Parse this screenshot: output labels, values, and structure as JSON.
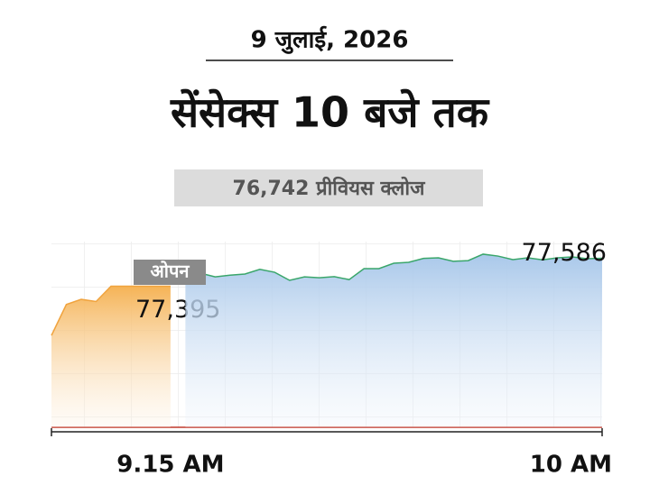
{
  "chart_data": {
    "type": "area",
    "date": "9 जुलाई, 2026",
    "title": "सेंसेक्स 10 बजे तक",
    "previous_close_label": "76,742 प्रीवियस क्लोज",
    "open_label": "ओपन",
    "categories": [
      null,
      null,
      null,
      null,
      null,
      null,
      null,
      null,
      "9.15 AM",
      null,
      null,
      null,
      null,
      null,
      null,
      null,
      null,
      null,
      null,
      null,
      null,
      null,
      null,
      null,
      null,
      null,
      null,
      null,
      null,
      null,
      null,
      null,
      null,
      null,
      null,
      null,
      null,
      "10 AM"
    ],
    "ylim": [
      76430,
      77700
    ],
    "series": [
      {
        "color": "#f0a33e",
        "values": [
          77058,
          77270,
          77305,
          77290,
          77395,
          77395,
          77395,
          77395,
          77395,
          null,
          null,
          null,
          null,
          null,
          null,
          null,
          null,
          null,
          null,
          null,
          null,
          null,
          null,
          null,
          null,
          null,
          null,
          null,
          null,
          null,
          null,
          null,
          null,
          null,
          null,
          null,
          null,
          null
        ],
        "value_labels": [
          null,
          null,
          null,
          null,
          null,
          null,
          null,
          null,
          "77,395",
          null,
          null,
          null,
          null,
          null,
          null,
          null,
          null,
          null,
          null,
          null,
          null,
          null,
          null,
          null,
          null,
          null,
          null,
          null,
          null,
          null,
          null,
          null,
          null,
          null,
          null,
          null,
          null,
          null
        ]
      },
      {
        "color": "#3aa66b",
        "values": [
          null,
          null,
          null,
          null,
          null,
          null,
          null,
          null,
          null,
          77503,
          77484,
          77459,
          77470,
          77478,
          77510,
          77490,
          77435,
          77459,
          77453,
          77460,
          77440,
          77515,
          77515,
          77552,
          77558,
          77585,
          77589,
          77565,
          77570,
          77614,
          77601,
          77577,
          77589,
          77575,
          77589,
          77595,
          77583,
          77586
        ],
        "value_labels": [
          null,
          null,
          null,
          null,
          null,
          null,
          null,
          null,
          null,
          null,
          null,
          null,
          null,
          null,
          null,
          null,
          null,
          null,
          null,
          null,
          null,
          null,
          null,
          null,
          null,
          null,
          null,
          null,
          null,
          null,
          null,
          null,
          null,
          null,
          null,
          null,
          null,
          "77,586"
        ]
      }
    ]
  }
}
